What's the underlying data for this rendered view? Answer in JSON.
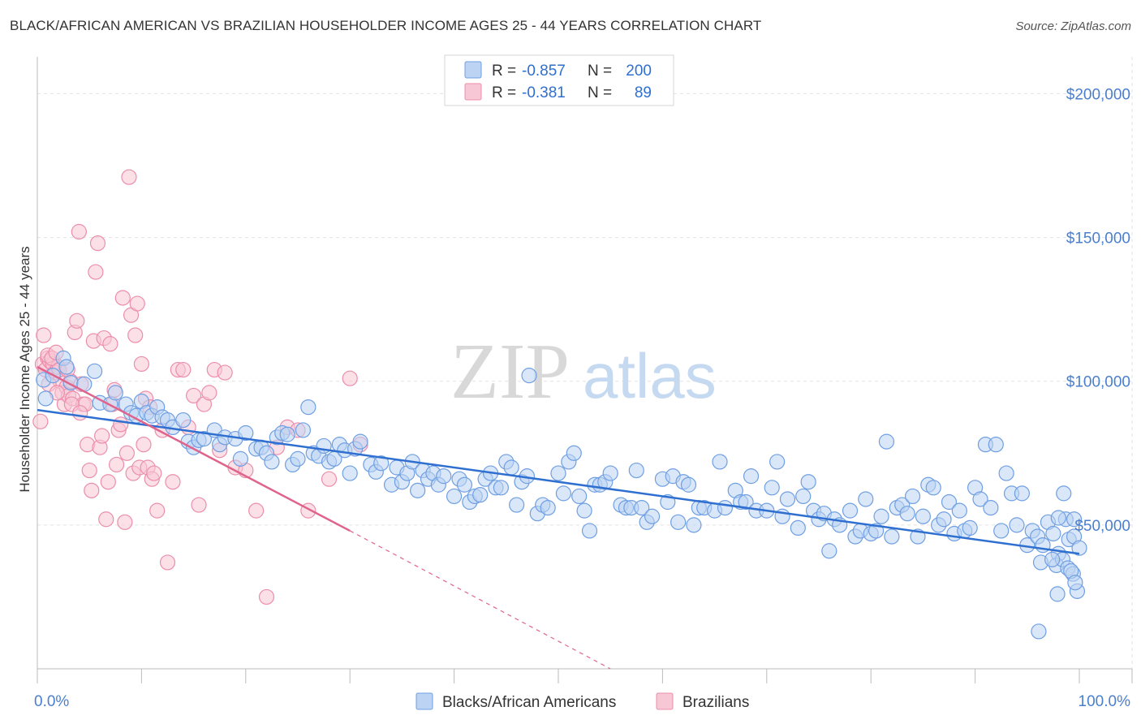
{
  "title": "BLACK/AFRICAN AMERICAN VS BRAZILIAN HOUSEHOLDER INCOME AGES 25 - 44 YEARS CORRELATION CHART",
  "source": "Source: ZipAtlas.com",
  "watermark": {
    "zip": "ZIP",
    "atlas": "atlas"
  },
  "colors": {
    "blue": "#6f9fe3",
    "blue_line": "#2f6fd0",
    "blue_fill": "#bcd3f3",
    "pink": "#ec8eab",
    "pink_line": "#e0638c",
    "pink_fill": "#f7c7d6",
    "grid": "#e2e2e2",
    "tick_text": "#4a7fcf"
  },
  "legend": {
    "rows": [
      {
        "r_label": "R =",
        "r_value": "-0.857",
        "n_label": "N =",
        "n_value": "200",
        "color": "blue"
      },
      {
        "r_label": "R =",
        "r_value": "-0.381",
        "n_label": "N =",
        "n_value": "89",
        "color": "pink"
      }
    ],
    "bottom": [
      {
        "label": "Blacks/African Americans",
        "color": "blue"
      },
      {
        "label": "Brazilians",
        "color": "pink"
      }
    ]
  },
  "chart_data": {
    "type": "scatter",
    "title": "BLACK/AFRICAN AMERICAN VS BRAZILIAN HOUSEHOLDER INCOME AGES 25 - 44 YEARS CORRELATION CHART",
    "xlabel": "",
    "ylabel": "Householder Income Ages 25 - 44 years",
    "xlim": [
      0,
      100
    ],
    "ylim": [
      0,
      210000
    ],
    "x_tick_labels": [
      "0.0%",
      "100.0%"
    ],
    "y_ticks": [
      50000,
      100000,
      150000,
      200000
    ],
    "y_tick_labels": [
      "$50,000",
      "$100,000",
      "$150,000",
      "$200,000"
    ],
    "grid": true,
    "legend_position": "top-center",
    "series": [
      {
        "name": "Blacks/African Americans",
        "color": "blue",
        "r": -0.857,
        "n": 200,
        "trend": {
          "x": [
            0,
            100
          ],
          "y": [
            90000,
            40000
          ]
        },
        "points": [
          [
            0.6,
            100500
          ],
          [
            0.8,
            94000
          ],
          [
            1.5,
            102000
          ],
          [
            2.5,
            108000
          ],
          [
            2.8,
            105000
          ],
          [
            3.2,
            99500
          ],
          [
            4.5,
            99000
          ],
          [
            5.5,
            103500
          ],
          [
            6.0,
            92500
          ],
          [
            7.0,
            92000
          ],
          [
            7.5,
            96000
          ],
          [
            8.5,
            92000
          ],
          [
            9.0,
            89000
          ],
          [
            9.5,
            88000
          ],
          [
            10.0,
            93000
          ],
          [
            10.5,
            89000
          ],
          [
            11.0,
            88000
          ],
          [
            11.5,
            91000
          ],
          [
            12.0,
            87500
          ],
          [
            12.5,
            86500
          ],
          [
            13.0,
            84000
          ],
          [
            14.0,
            86500
          ],
          [
            14.5,
            79000
          ],
          [
            15.0,
            77000
          ],
          [
            15.5,
            79500
          ],
          [
            16.0,
            80000
          ],
          [
            17.0,
            83000
          ],
          [
            17.5,
            78000
          ],
          [
            18.0,
            80500
          ],
          [
            19.0,
            80000
          ],
          [
            19.5,
            73000
          ],
          [
            20.0,
            82000
          ],
          [
            21.0,
            76500
          ],
          [
            21.5,
            77000
          ],
          [
            22.0,
            75000
          ],
          [
            22.5,
            72000
          ],
          [
            23.0,
            80500
          ],
          [
            23.5,
            82000
          ],
          [
            24.0,
            81500
          ],
          [
            24.5,
            71000
          ],
          [
            25.0,
            73000
          ],
          [
            25.5,
            83000
          ],
          [
            26.0,
            91000
          ],
          [
            26.5,
            75000
          ],
          [
            27.0,
            74000
          ],
          [
            27.5,
            77500
          ],
          [
            28.0,
            72000
          ],
          [
            28.5,
            73000
          ],
          [
            29.0,
            78000
          ],
          [
            29.5,
            76000
          ],
          [
            30.0,
            68000
          ],
          [
            30.5,
            76500
          ],
          [
            31.0,
            79000
          ],
          [
            32.0,
            71000
          ],
          [
            32.5,
            68500
          ],
          [
            33.0,
            71500
          ],
          [
            34.0,
            64000
          ],
          [
            34.5,
            70000
          ],
          [
            35.0,
            65000
          ],
          [
            35.5,
            68000
          ],
          [
            36.0,
            72000
          ],
          [
            36.5,
            62000
          ],
          [
            37.0,
            69000
          ],
          [
            37.5,
            66000
          ],
          [
            38.0,
            68000
          ],
          [
            38.5,
            64000
          ],
          [
            39.0,
            67000
          ],
          [
            40.0,
            60000
          ],
          [
            40.5,
            66000
          ],
          [
            41.0,
            64000
          ],
          [
            41.5,
            58000
          ],
          [
            42.0,
            60000
          ],
          [
            42.5,
            60500
          ],
          [
            43.0,
            66000
          ],
          [
            43.5,
            68000
          ],
          [
            44.0,
            63000
          ],
          [
            44.5,
            63000
          ],
          [
            45.0,
            72000
          ],
          [
            45.5,
            70000
          ],
          [
            46.0,
            57000
          ],
          [
            46.5,
            65000
          ],
          [
            47.0,
            67000
          ],
          [
            48.0,
            54000
          ],
          [
            48.5,
            57000
          ],
          [
            49.0,
            56000
          ],
          [
            50.0,
            68000
          ],
          [
            50.5,
            61000
          ],
          [
            51.0,
            72000
          ],
          [
            51.5,
            75000
          ],
          [
            52.0,
            60000
          ],
          [
            52.5,
            55000
          ],
          [
            53.0,
            48000
          ],
          [
            53.5,
            64000
          ],
          [
            54.0,
            64000
          ],
          [
            54.5,
            65000
          ],
          [
            55.0,
            68000
          ],
          [
            56.0,
            57000
          ],
          [
            56.5,
            56000
          ],
          [
            57.0,
            56000
          ],
          [
            57.5,
            69000
          ],
          [
            58.0,
            56000
          ],
          [
            58.5,
            51000
          ],
          [
            59.0,
            53000
          ],
          [
            60.0,
            66000
          ],
          [
            60.5,
            58000
          ],
          [
            61.0,
            67000
          ],
          [
            61.5,
            51000
          ],
          [
            62.0,
            65000
          ],
          [
            62.5,
            64000
          ],
          [
            63.0,
            50000
          ],
          [
            63.5,
            56000
          ],
          [
            64.0,
            56000
          ],
          [
            65.0,
            55000
          ],
          [
            65.5,
            72000
          ],
          [
            66.0,
            56000
          ],
          [
            67.0,
            62000
          ],
          [
            67.5,
            58000
          ],
          [
            68.0,
            58000
          ],
          [
            68.5,
            67000
          ],
          [
            69.0,
            55000
          ],
          [
            70.0,
            55000
          ],
          [
            70.5,
            63000
          ],
          [
            71.0,
            72000
          ],
          [
            71.5,
            53000
          ],
          [
            72.0,
            59000
          ],
          [
            73.0,
            49000
          ],
          [
            73.5,
            60000
          ],
          [
            74.0,
            65000
          ],
          [
            74.5,
            55000
          ],
          [
            75.0,
            52000
          ],
          [
            75.5,
            54000
          ],
          [
            76.0,
            41000
          ],
          [
            76.5,
            52000
          ],
          [
            77.0,
            50000
          ],
          [
            78.0,
            55000
          ],
          [
            78.5,
            46000
          ],
          [
            79.0,
            48000
          ],
          [
            79.5,
            59000
          ],
          [
            80.0,
            47000
          ],
          [
            80.5,
            48000
          ],
          [
            81.0,
            53000
          ],
          [
            81.5,
            79000
          ],
          [
            82.0,
            46000
          ],
          [
            82.5,
            56000
          ],
          [
            83.0,
            57000
          ],
          [
            83.5,
            54000
          ],
          [
            84.0,
            60000
          ],
          [
            84.5,
            46000
          ],
          [
            85.0,
            53000
          ],
          [
            85.5,
            64000
          ],
          [
            86.0,
            63000
          ],
          [
            86.5,
            50000
          ],
          [
            87.0,
            52000
          ],
          [
            87.5,
            58000
          ],
          [
            88.0,
            47000
          ],
          [
            88.5,
            55000
          ],
          [
            89.0,
            48000
          ],
          [
            89.5,
            49000
          ],
          [
            90.0,
            63000
          ],
          [
            90.5,
            59000
          ],
          [
            91.0,
            78000
          ],
          [
            91.5,
            56000
          ],
          [
            92.0,
            78000
          ],
          [
            92.5,
            48000
          ],
          [
            93.0,
            68000
          ],
          [
            93.5,
            61000
          ],
          [
            94.0,
            50000
          ],
          [
            94.5,
            61000
          ],
          [
            95.0,
            43000
          ],
          [
            95.5,
            48000
          ],
          [
            96.0,
            46000
          ],
          [
            96.5,
            43000
          ],
          [
            97.0,
            51000
          ],
          [
            97.5,
            47000
          ],
          [
            98.0,
            40000
          ],
          [
            98.5,
            61000
          ],
          [
            99.0,
            45000
          ],
          [
            99.5,
            46000
          ],
          [
            100.0,
            42000
          ],
          [
            97.8,
            36000
          ],
          [
            98.4,
            38000
          ],
          [
            98.9,
            35000
          ],
          [
            99.4,
            33000
          ],
          [
            99.8,
            27000
          ],
          [
            99.2,
            34000
          ],
          [
            98.7,
            52000
          ],
          [
            96.3,
            37000
          ],
          [
            97.9,
            26000
          ],
          [
            99.6,
            30000
          ],
          [
            96.1,
            13000
          ],
          [
            97.4,
            38000
          ],
          [
            99.5,
            52000
          ],
          [
            98.0,
            52500
          ],
          [
            47.2,
            102000
          ]
        ]
      },
      {
        "name": "Brazilians",
        "color": "pink",
        "r": -0.381,
        "n": 89,
        "trend": {
          "x": [
            0,
            30
          ],
          "y": [
            105000,
            48000
          ],
          "dashed_to": {
            "x": 55,
            "y": 0
          }
        },
        "points": [
          [
            0.3,
            86000
          ],
          [
            0.5,
            106000
          ],
          [
            0.8,
            104000
          ],
          [
            1.0,
            108000
          ],
          [
            1.2,
            107000
          ],
          [
            1.5,
            106000
          ],
          [
            1.7,
            103000
          ],
          [
            2.0,
            105000
          ],
          [
            2.2,
            100000
          ],
          [
            2.4,
            96000
          ],
          [
            2.6,
            92000
          ],
          [
            2.8,
            98000
          ],
          [
            3.0,
            95000
          ],
          [
            3.2,
            100000
          ],
          [
            3.4,
            94000
          ],
          [
            3.6,
            117000
          ],
          [
            3.8,
            121000
          ],
          [
            4.0,
            152000
          ],
          [
            4.2,
            99000
          ],
          [
            4.4,
            92000
          ],
          [
            4.6,
            92000
          ],
          [
            4.8,
            78000
          ],
          [
            5.0,
            69000
          ],
          [
            5.2,
            62000
          ],
          [
            5.4,
            114000
          ],
          [
            5.6,
            138000
          ],
          [
            5.8,
            148000
          ],
          [
            6.0,
            77000
          ],
          [
            6.2,
            81000
          ],
          [
            6.4,
            115000
          ],
          [
            6.6,
            52000
          ],
          [
            6.8,
            65000
          ],
          [
            7.0,
            113000
          ],
          [
            7.2,
            92000
          ],
          [
            7.4,
            97000
          ],
          [
            7.6,
            71000
          ],
          [
            7.8,
            83000
          ],
          [
            8.0,
            85000
          ],
          [
            8.2,
            129000
          ],
          [
            8.4,
            51000
          ],
          [
            8.6,
            75000
          ],
          [
            8.8,
            171000
          ],
          [
            9.0,
            123000
          ],
          [
            9.2,
            68000
          ],
          [
            9.4,
            116000
          ],
          [
            9.6,
            127000
          ],
          [
            9.8,
            70000
          ],
          [
            10.0,
            106000
          ],
          [
            10.2,
            78000
          ],
          [
            10.4,
            94000
          ],
          [
            10.6,
            70000
          ],
          [
            10.8,
            91000
          ],
          [
            11.0,
            66000
          ],
          [
            11.2,
            68000
          ],
          [
            11.5,
            55000
          ],
          [
            12.0,
            83000
          ],
          [
            12.5,
            37000
          ],
          [
            13.0,
            65000
          ],
          [
            13.5,
            104000
          ],
          [
            14.0,
            104000
          ],
          [
            14.5,
            84000
          ],
          [
            15.0,
            95000
          ],
          [
            15.5,
            57000
          ],
          [
            16.0,
            92000
          ],
          [
            16.5,
            96000
          ],
          [
            17.0,
            104000
          ],
          [
            17.5,
            76000
          ],
          [
            18.0,
            103000
          ],
          [
            19.0,
            70000
          ],
          [
            20.0,
            69000
          ],
          [
            21.0,
            55000
          ],
          [
            22.0,
            25000
          ],
          [
            23.0,
            77000
          ],
          [
            24.0,
            84000
          ],
          [
            25.0,
            83000
          ],
          [
            26.0,
            55000
          ],
          [
            28.0,
            66000
          ],
          [
            30.0,
            101000
          ],
          [
            31.0,
            78000
          ],
          [
            1.0,
            109000
          ],
          [
            1.4,
            108000
          ],
          [
            1.8,
            110000
          ],
          [
            2.1,
            104000
          ],
          [
            0.6,
            116000
          ],
          [
            1.1,
            99000
          ],
          [
            1.9,
            96000
          ],
          [
            2.9,
            104000
          ],
          [
            3.3,
            92000
          ],
          [
            4.1,
            89000
          ]
        ]
      }
    ]
  }
}
